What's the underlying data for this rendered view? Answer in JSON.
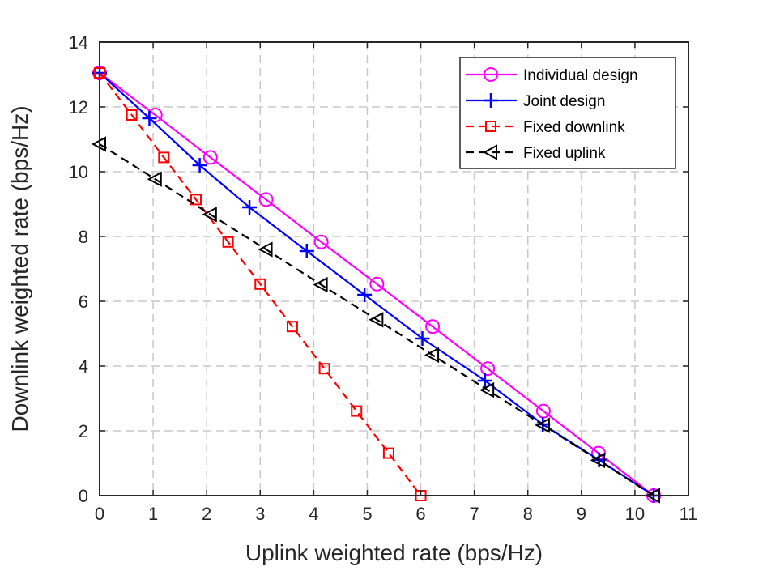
{
  "chart_data": {
    "type": "line",
    "title": "",
    "xlabel": "Uplink weighted rate (bps/Hz)",
    "ylabel": "Downlink weighted rate (bps/Hz)",
    "xlim": [
      0,
      11
    ],
    "ylim": [
      0,
      14
    ],
    "xticks": [
      0,
      1,
      2,
      3,
      4,
      5,
      6,
      7,
      8,
      9,
      10,
      11
    ],
    "yticks": [
      0,
      2,
      4,
      6,
      8,
      10,
      12,
      14
    ],
    "grid": true,
    "legend_position": "top-right",
    "series": [
      {
        "name": "Individual design",
        "color": "#ff00ff",
        "line": "solid",
        "marker": "circle",
        "x": [
          0,
          1.04,
          2.07,
          3.11,
          4.14,
          5.18,
          6.22,
          7.25,
          8.29,
          9.32,
          10.35
        ],
        "y": [
          13.05,
          11.75,
          10.44,
          9.14,
          7.83,
          6.53,
          5.22,
          3.92,
          2.61,
          1.31,
          0
        ]
      },
      {
        "name": "Joint design",
        "color": "#0000ff",
        "line": "solid",
        "marker": "plus",
        "x": [
          0,
          0.93,
          1.87,
          2.8,
          3.87,
          4.95,
          6.03,
          7.2,
          8.28,
          9.33,
          10.35
        ],
        "y": [
          13.05,
          11.65,
          10.2,
          8.9,
          7.55,
          6.2,
          4.85,
          3.55,
          2.2,
          1.1,
          0
        ]
      },
      {
        "name": "Fixed downlink",
        "color": "#ff0000",
        "line": "dashed",
        "marker": "square",
        "x": [
          0,
          0.6,
          1.2,
          1.8,
          2.4,
          3.0,
          3.6,
          4.2,
          4.8,
          5.4,
          6.0
        ],
        "y": [
          13.05,
          11.75,
          10.44,
          9.14,
          7.83,
          6.53,
          5.22,
          3.92,
          2.61,
          1.31,
          0
        ]
      },
      {
        "name": "Fixed uplink",
        "color": "#000000",
        "line": "dashed",
        "marker": "triangle-left",
        "x": [
          0,
          1.04,
          2.07,
          3.11,
          4.14,
          5.18,
          6.22,
          7.25,
          8.29,
          9.32,
          10.35
        ],
        "y": [
          10.85,
          9.77,
          8.68,
          7.6,
          6.51,
          5.43,
          4.34,
          3.26,
          2.17,
          1.09,
          0
        ]
      }
    ]
  }
}
